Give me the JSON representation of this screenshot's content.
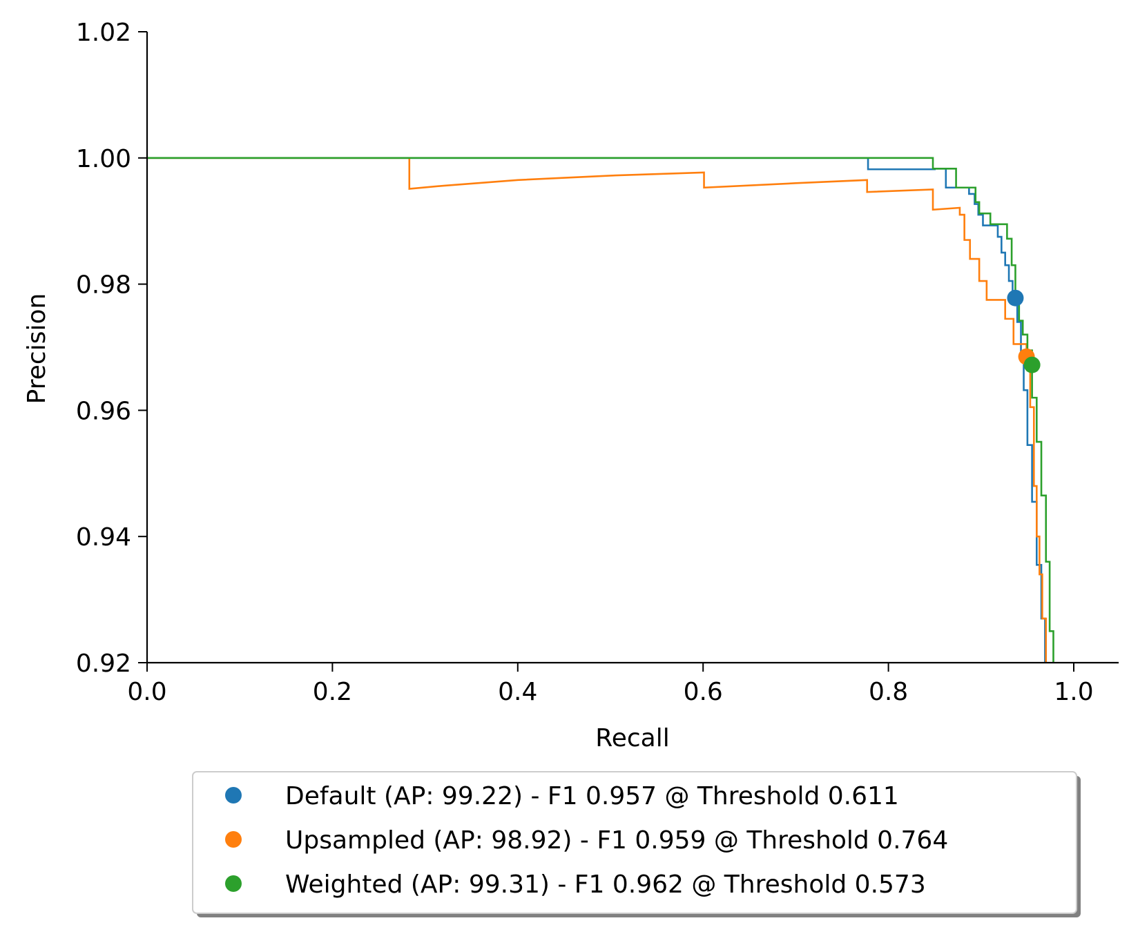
{
  "chart_data": {
    "type": "line",
    "xlabel": "Recall",
    "ylabel": "Precision",
    "xlim": [
      0.0,
      1.05
    ],
    "ylim": [
      0.92,
      1.02
    ],
    "xticks": [
      0.0,
      0.2,
      0.4,
      0.6,
      0.8,
      1.0
    ],
    "xtick_labels": [
      "0.0",
      "0.2",
      "0.4",
      "0.6",
      "0.8",
      "1.0"
    ],
    "yticks": [
      0.92,
      0.94,
      0.96,
      0.98,
      1.0,
      1.02
    ],
    "ytick_labels": [
      "0.92",
      "0.94",
      "0.96",
      "0.98",
      "1.00",
      "1.02"
    ],
    "grid": false,
    "legend_position": "bottom-center, below axes",
    "series": [
      {
        "name": "Default (AP: 99.22) - F1 0.957 @ Threshold 0.611",
        "color": "#1f77b4",
        "marker": {
          "x": 0.937,
          "y": 0.9778
        },
        "points": [
          [
            0.0,
            1.0
          ],
          [
            0.778,
            1.0
          ],
          [
            0.778,
            0.9982
          ],
          [
            0.85,
            0.9982
          ],
          [
            0.85,
            0.9983
          ],
          [
            0.862,
            0.9983
          ],
          [
            0.862,
            0.9953
          ],
          [
            0.887,
            0.9953
          ],
          [
            0.887,
            0.9943
          ],
          [
            0.893,
            0.9943
          ],
          [
            0.893,
            0.9927
          ],
          [
            0.897,
            0.9927
          ],
          [
            0.897,
            0.991
          ],
          [
            0.902,
            0.991
          ],
          [
            0.902,
            0.9893
          ],
          [
            0.918,
            0.9893
          ],
          [
            0.918,
            0.9875
          ],
          [
            0.922,
            0.9875
          ],
          [
            0.922,
            0.985
          ],
          [
            0.926,
            0.985
          ],
          [
            0.926,
            0.983
          ],
          [
            0.93,
            0.983
          ],
          [
            0.93,
            0.9805
          ],
          [
            0.934,
            0.9805
          ],
          [
            0.934,
            0.9778
          ],
          [
            0.939,
            0.9778
          ],
          [
            0.939,
            0.974
          ],
          [
            0.943,
            0.974
          ],
          [
            0.943,
            0.9692
          ],
          [
            0.946,
            0.9692
          ],
          [
            0.946,
            0.9632
          ],
          [
            0.95,
            0.9632
          ],
          [
            0.95,
            0.9545
          ],
          [
            0.955,
            0.9545
          ],
          [
            0.955,
            0.9455
          ],
          [
            0.96,
            0.9455
          ],
          [
            0.96,
            0.9355
          ],
          [
            0.965,
            0.9355
          ],
          [
            0.965,
            0.927
          ],
          [
            0.969,
            0.927
          ],
          [
            0.969,
            0.92
          ]
        ]
      },
      {
        "name": "Upsampled (AP: 98.92) - F1 0.959 @ Threshold 0.764",
        "color": "#ff7f0e",
        "marker": {
          "x": 0.949,
          "y": 0.9685
        },
        "points": [
          [
            0.0,
            1.0
          ],
          [
            0.283,
            1.0
          ],
          [
            0.283,
            0.9951
          ],
          [
            0.32,
            0.9956
          ],
          [
            0.4,
            0.9965
          ],
          [
            0.5,
            0.9972
          ],
          [
            0.601,
            0.9977
          ],
          [
            0.601,
            0.9953
          ],
          [
            0.7,
            0.996
          ],
          [
            0.777,
            0.9965
          ],
          [
            0.777,
            0.9946
          ],
          [
            0.848,
            0.995
          ],
          [
            0.848,
            0.9918
          ],
          [
            0.877,
            0.9921
          ],
          [
            0.877,
            0.991
          ],
          [
            0.882,
            0.991
          ],
          [
            0.882,
            0.987
          ],
          [
            0.888,
            0.987
          ],
          [
            0.888,
            0.984
          ],
          [
            0.898,
            0.984
          ],
          [
            0.898,
            0.9805
          ],
          [
            0.906,
            0.9805
          ],
          [
            0.906,
            0.9775
          ],
          [
            0.926,
            0.9775
          ],
          [
            0.926,
            0.9745
          ],
          [
            0.935,
            0.9745
          ],
          [
            0.935,
            0.9705
          ],
          [
            0.949,
            0.9705
          ],
          [
            0.949,
            0.9685
          ],
          [
            0.953,
            0.9685
          ],
          [
            0.953,
            0.9605
          ],
          [
            0.957,
            0.9605
          ],
          [
            0.957,
            0.948
          ],
          [
            0.96,
            0.948
          ],
          [
            0.96,
            0.94
          ],
          [
            0.963,
            0.94
          ],
          [
            0.963,
            0.934
          ],
          [
            0.966,
            0.934
          ],
          [
            0.966,
            0.927
          ],
          [
            0.97,
            0.927
          ],
          [
            0.97,
            0.92
          ]
        ]
      },
      {
        "name": "Weighted (AP: 99.31) - F1 0.962 @ Threshold 0.573",
        "color": "#2ca02c",
        "marker": {
          "x": 0.955,
          "y": 0.9672
        },
        "points": [
          [
            0.0,
            1.0
          ],
          [
            0.848,
            1.0
          ],
          [
            0.848,
            0.9983
          ],
          [
            0.873,
            0.9983
          ],
          [
            0.873,
            0.9953
          ],
          [
            0.894,
            0.9953
          ],
          [
            0.894,
            0.993
          ],
          [
            0.898,
            0.993
          ],
          [
            0.898,
            0.9912
          ],
          [
            0.91,
            0.9912
          ],
          [
            0.91,
            0.9895
          ],
          [
            0.928,
            0.9895
          ],
          [
            0.928,
            0.9872
          ],
          [
            0.933,
            0.9872
          ],
          [
            0.933,
            0.983
          ],
          [
            0.937,
            0.983
          ],
          [
            0.937,
            0.978
          ],
          [
            0.941,
            0.978
          ],
          [
            0.941,
            0.9742
          ],
          [
            0.945,
            0.9742
          ],
          [
            0.945,
            0.972
          ],
          [
            0.95,
            0.972
          ],
          [
            0.95,
            0.9695
          ],
          [
            0.955,
            0.9695
          ],
          [
            0.955,
            0.962
          ],
          [
            0.96,
            0.962
          ],
          [
            0.96,
            0.955
          ],
          [
            0.965,
            0.955
          ],
          [
            0.965,
            0.9465
          ],
          [
            0.97,
            0.9465
          ],
          [
            0.97,
            0.936
          ],
          [
            0.974,
            0.936
          ],
          [
            0.974,
            0.925
          ],
          [
            0.978,
            0.925
          ],
          [
            0.978,
            0.92
          ]
        ]
      }
    ]
  }
}
